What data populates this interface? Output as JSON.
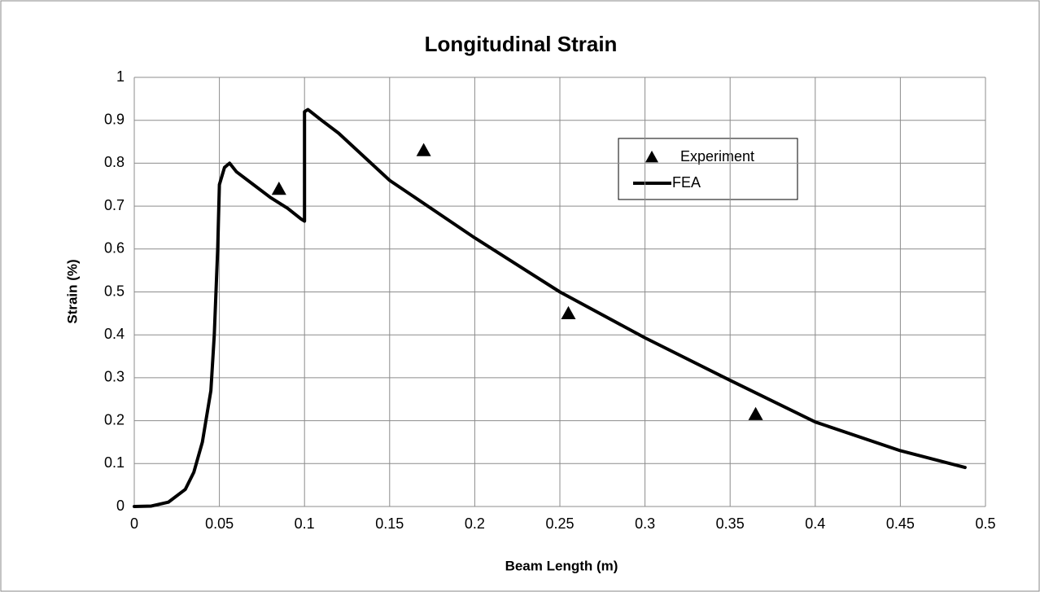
{
  "chart_data": {
    "type": "scatter",
    "title": "Longitudinal Strain",
    "x_label": "Beam Length (m)",
    "y_label": "Strain (%)",
    "xlim": [
      0,
      0.5
    ],
    "xticks": [
      0,
      0.05,
      0.1,
      0.15,
      0.2,
      0.25,
      0.3,
      0.35,
      0.4,
      0.45,
      0.5
    ],
    "ylim": [
      0,
      1
    ],
    "yticks": [
      0,
      0.1,
      0.2,
      0.3,
      0.4,
      0.5,
      0.6,
      0.7,
      0.8,
      0.9,
      1
    ],
    "grid": true,
    "series": [
      {
        "name": "Experiment",
        "type": "scatter",
        "color": "#000000",
        "x": [
          0.085,
          0.17,
          0.255,
          0.365
        ],
        "values": [
          0.74,
          0.83,
          0.45,
          0.215
        ]
      },
      {
        "name": "FEA",
        "type": "line",
        "color": "#000000",
        "x": [
          0,
          0.01,
          0.02,
          0.03,
          0.035,
          0.04,
          0.045,
          0.047,
          0.049,
          0.05,
          0.053,
          0.056,
          0.06,
          0.07,
          0.08,
          0.09,
          0.098,
          0.1,
          0.1,
          0.102,
          0.11,
          0.12,
          0.15,
          0.2,
          0.25,
          0.3,
          0.35,
          0.4,
          0.45,
          0.488
        ],
        "values": [
          0,
          0.001,
          0.01,
          0.04,
          0.08,
          0.15,
          0.27,
          0.4,
          0.6,
          0.75,
          0.79,
          0.8,
          0.78,
          0.75,
          0.72,
          0.695,
          0.67,
          0.665,
          0.92,
          0.925,
          0.9,
          0.87,
          0.76,
          0.626,
          0.5,
          0.393,
          0.294,
          0.197,
          0.13,
          0.091
        ]
      }
    ]
  }
}
